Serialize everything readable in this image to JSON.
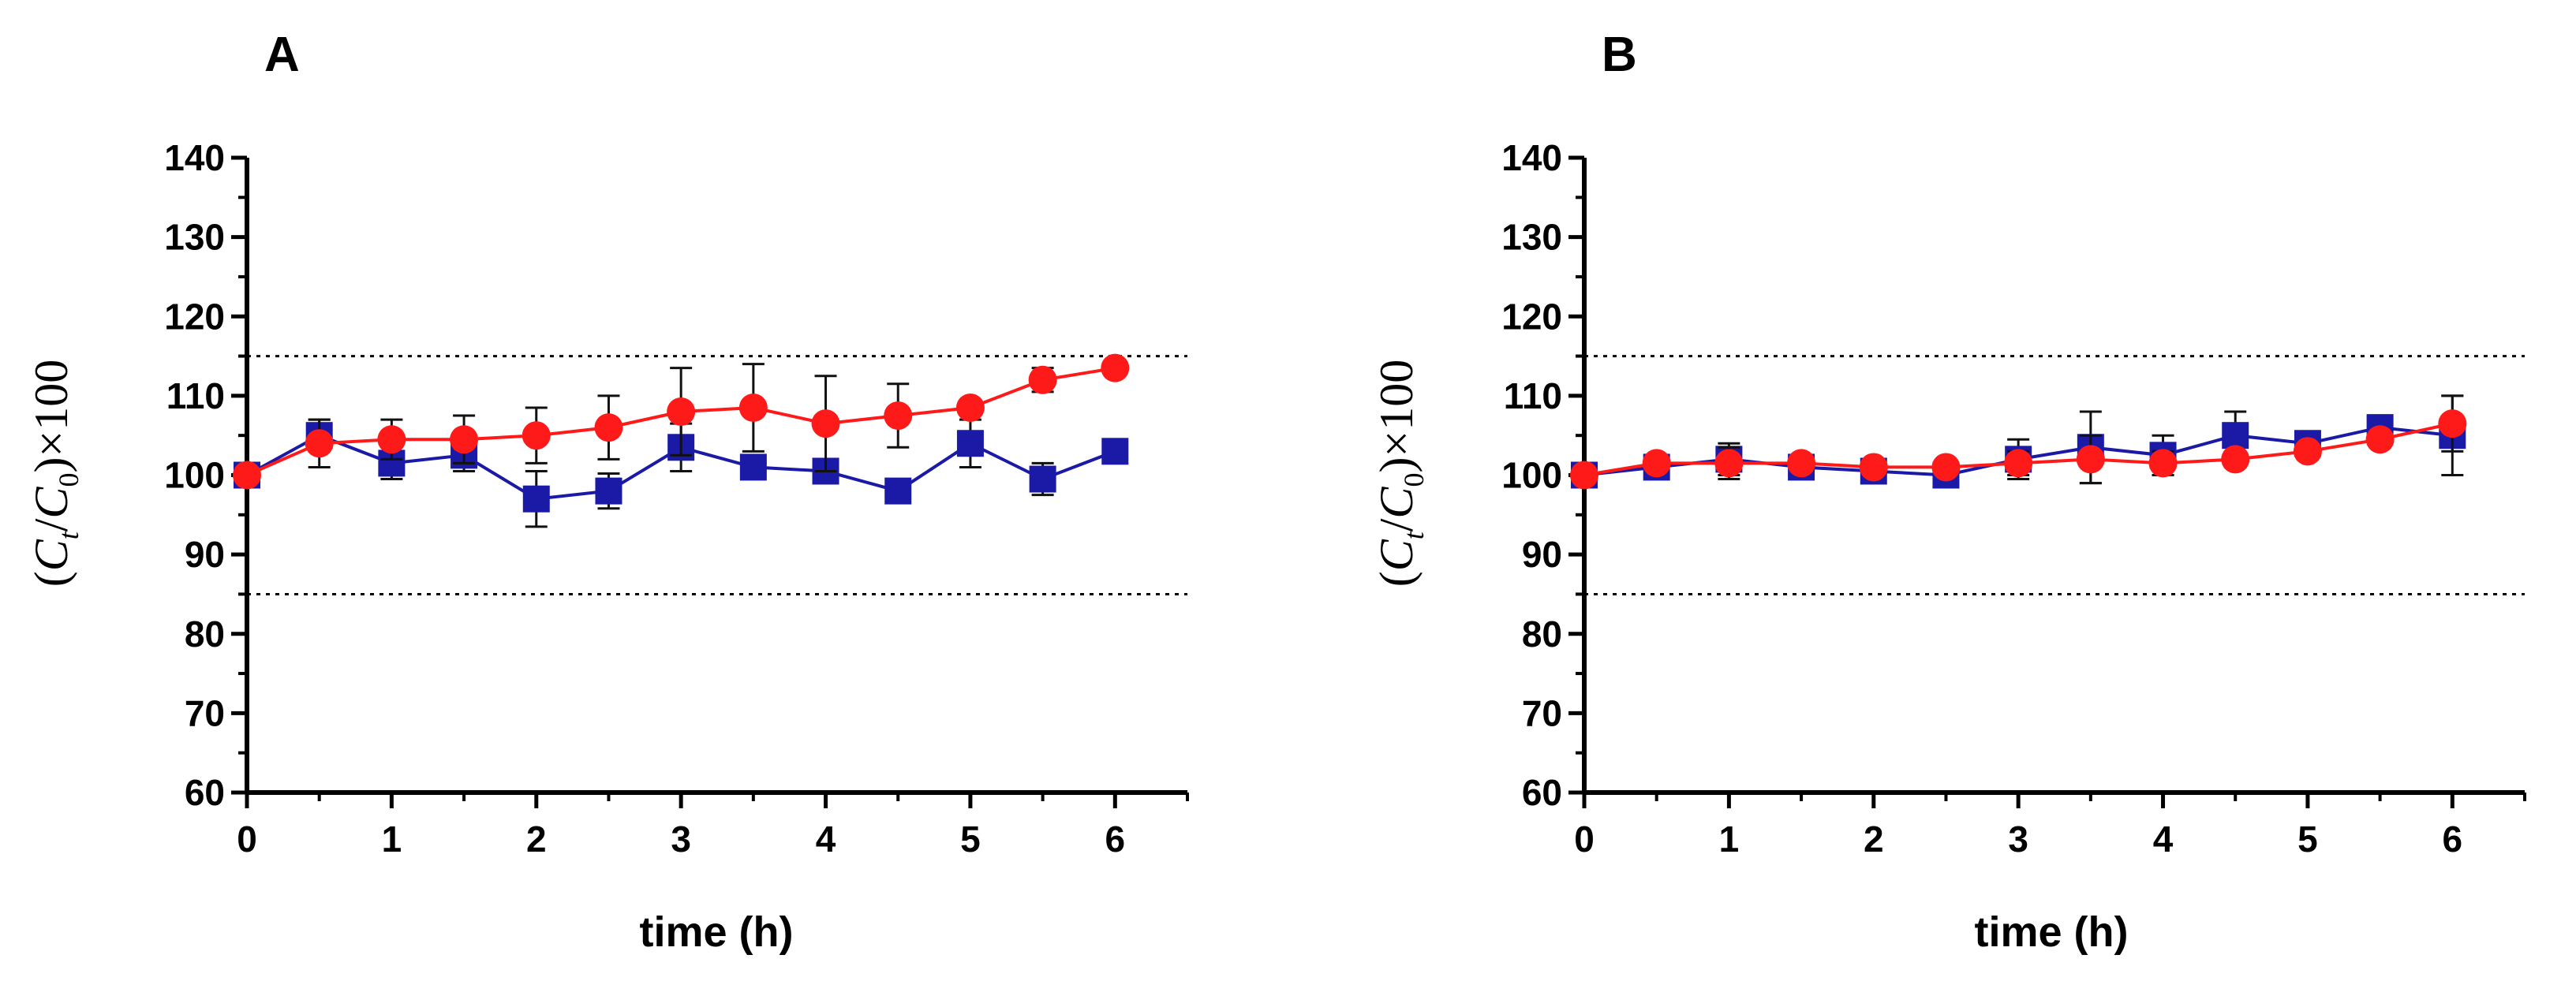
{
  "chart_data": [
    {
      "type": "line",
      "panel": "A",
      "xlabel": "time (h)",
      "ylabel": "(C_t/C_0)×100",
      "ylabel_parts": {
        "open": "(",
        "c1": "C",
        "sub1": "t",
        "slash": "/",
        "c2": "C",
        "sub2": "0",
        "close": ")×100"
      },
      "xlim": [
        0,
        6.5
      ],
      "ylim": [
        60,
        140
      ],
      "xticks": [
        0,
        1,
        2,
        3,
        4,
        5,
        6
      ],
      "yticks": [
        60,
        70,
        80,
        90,
        100,
        110,
        120,
        130,
        140
      ],
      "reference_lines": [
        115,
        85
      ],
      "series": [
        {
          "name": "blue squares",
          "color": "#1a1aa6",
          "marker": "square",
          "x": [
            0,
            0.5,
            1,
            1.5,
            2,
            2.5,
            3,
            3.5,
            4,
            4.5,
            5,
            5.5,
            6
          ],
          "y": [
            100,
            105,
            101.5,
            102.5,
            97,
            98,
            103.5,
            101,
            100.5,
            98,
            104,
            99.5,
            103
          ],
          "err": [
            0.5,
            2,
            2,
            2,
            3.5,
            2.2,
            3,
            0,
            0,
            0,
            3,
            2,
            0
          ]
        },
        {
          "name": "red circles",
          "color": "#ff1a1a",
          "marker": "circle",
          "x": [
            0,
            0.5,
            1,
            1.5,
            2,
            2.5,
            3,
            3.5,
            4,
            4.5,
            5,
            5.5,
            6
          ],
          "y": [
            100,
            104,
            104.5,
            104.5,
            105,
            106,
            108,
            108.5,
            106.5,
            107.5,
            108.5,
            112,
            113.5
          ],
          "err": [
            0,
            3,
            2.5,
            3,
            3.5,
            4,
            5.5,
            5.5,
            6,
            4,
            0,
            1.5,
            0
          ]
        }
      ]
    },
    {
      "type": "line",
      "panel": "B",
      "xlabel": "time (h)",
      "ylabel": "(C_t/C_0)×100",
      "ylabel_parts": {
        "open": "(",
        "c1": "C",
        "sub1": "t",
        "slash": "/",
        "c2": "C",
        "sub2": "0",
        "close": ")×100"
      },
      "xlim": [
        0,
        6.5
      ],
      "ylim": [
        60,
        140
      ],
      "xticks": [
        0,
        1,
        2,
        3,
        4,
        5,
        6
      ],
      "yticks": [
        60,
        70,
        80,
        90,
        100,
        110,
        120,
        130,
        140
      ],
      "reference_lines": [
        115,
        85
      ],
      "series": [
        {
          "name": "blue squares",
          "color": "#1a1aa6",
          "marker": "square",
          "x": [
            0,
            0.5,
            1,
            1.5,
            2,
            2.5,
            3,
            3.5,
            4,
            4.5,
            5,
            5.5,
            6
          ],
          "y": [
            100,
            101,
            102,
            101,
            100.5,
            100,
            102,
            103.5,
            102.5,
            105,
            104,
            106,
            105
          ],
          "err": [
            0.5,
            1,
            2,
            1,
            1,
            0.5,
            2.5,
            4.5,
            2.5,
            3,
            0,
            0,
            5
          ]
        },
        {
          "name": "red circles",
          "color": "#ff1a1a",
          "marker": "circle",
          "x": [
            0,
            0.5,
            1,
            1.5,
            2,
            2.5,
            3,
            3.5,
            4,
            4.5,
            5,
            5.5,
            6
          ],
          "y": [
            100,
            101.5,
            101.5,
            101.5,
            101,
            101,
            101.5,
            102,
            101.5,
            102,
            103,
            104.5,
            106.5
          ],
          "err": [
            0,
            1,
            2,
            1,
            0.5,
            0.5,
            1.5,
            3,
            1.5,
            1,
            1,
            1,
            3.5
          ]
        }
      ]
    }
  ]
}
